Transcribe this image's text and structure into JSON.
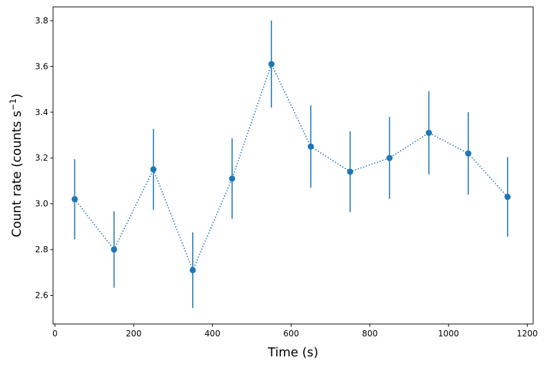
{
  "chart_data": {
    "type": "scatter",
    "title": "",
    "xlabel": "Time (s)",
    "ylabel_main": "Count rate (counts s",
    "ylabel_sup": "−1",
    "ylabel_close": ")",
    "xlim": [
      -5,
      1215
    ],
    "ylim": [
      2.475,
      3.86
    ],
    "xticks": [
      0,
      200,
      400,
      600,
      800,
      1000,
      1200
    ],
    "xtick_labels": [
      "0",
      "200",
      "400",
      "600",
      "800",
      "1000",
      "1200"
    ],
    "yticks": [
      2.6,
      2.8,
      3.0,
      3.2,
      3.4,
      3.6,
      3.8
    ],
    "ytick_labels": [
      "2.6",
      "2.8",
      "3.0",
      "3.2",
      "3.4",
      "3.6",
      "3.8"
    ],
    "grid": false,
    "legend": "none",
    "line_style": "dotted",
    "color": "#1f77b4",
    "series": [
      {
        "x": [
          50,
          150,
          250,
          350,
          450,
          550,
          650,
          750,
          850,
          950,
          1050,
          1150
        ],
        "y": [
          3.02,
          2.8,
          3.15,
          2.71,
          3.11,
          3.61,
          3.25,
          3.14,
          3.2,
          3.31,
          3.22,
          3.03
        ],
        "yerr": [
          0.175,
          0.167,
          0.177,
          0.165,
          0.176,
          0.19,
          0.18,
          0.177,
          0.179,
          0.182,
          0.18,
          0.174
        ]
      }
    ]
  }
}
